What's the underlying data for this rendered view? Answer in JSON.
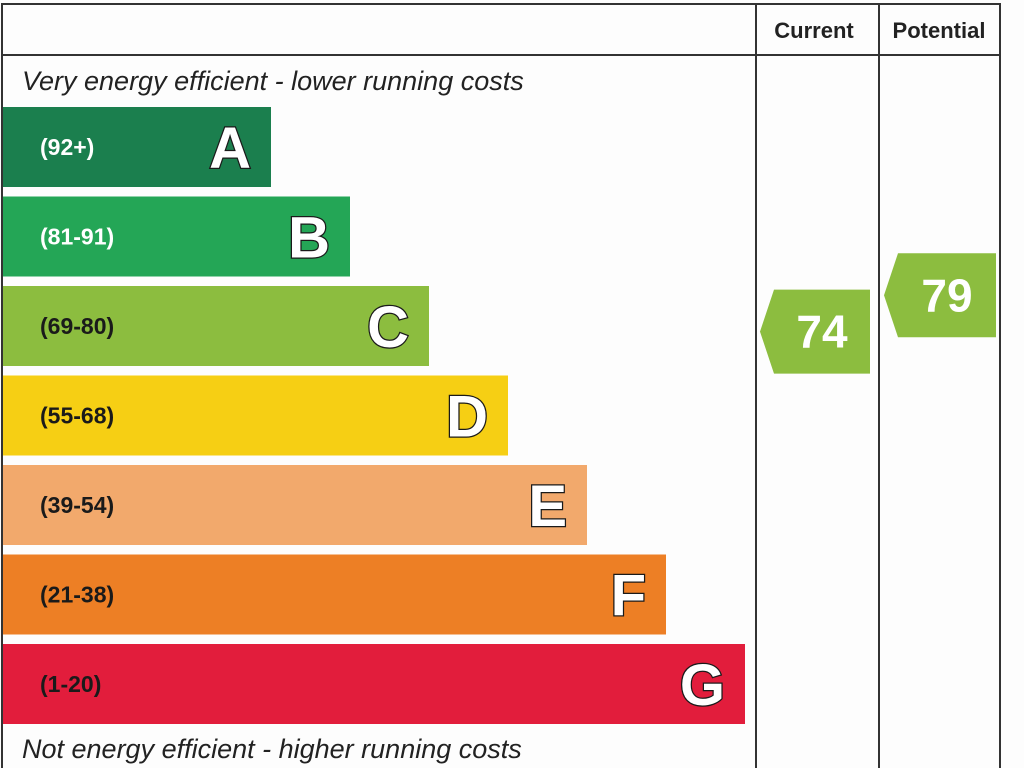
{
  "chart_data": {
    "type": "bar",
    "title": "",
    "header": {
      "current_label": "Current",
      "potential_label": "Potential"
    },
    "top_caption": "Very energy efficient - lower running costs",
    "bottom_caption": "Not energy efficient - higher running costs",
    "bands": [
      {
        "letter": "A",
        "range": "(92+)",
        "color": "#1b7f4e",
        "text_color": "#ffffff"
      },
      {
        "letter": "B",
        "range": "(81-91)",
        "color": "#24a656",
        "text_color": "#ffffff"
      },
      {
        "letter": "C",
        "range": "(69-80)",
        "color": "#8cbd3f",
        "text_color": "#1a1a1a"
      },
      {
        "letter": "D",
        "range": "(55-68)",
        "color": "#f6cf14",
        "text_color": "#1a1a1a"
      },
      {
        "letter": "E",
        "range": "(39-54)",
        "color": "#f2a96c",
        "text_color": "#1a1a1a"
      },
      {
        "letter": "F",
        "range": "(21-38)",
        "color": "#ed7f25",
        "text_color": "#1a1a1a"
      },
      {
        "letter": "G",
        "range": "(1-20)",
        "color": "#e21d3c",
        "text_color": "#1a1a1a"
      }
    ],
    "current": {
      "value": 74,
      "band": "C",
      "color": "#8cbd3f"
    },
    "potential": {
      "value": 79,
      "band": "C",
      "color": "#8cbd3f"
    },
    "scale": [
      1,
      100
    ]
  }
}
